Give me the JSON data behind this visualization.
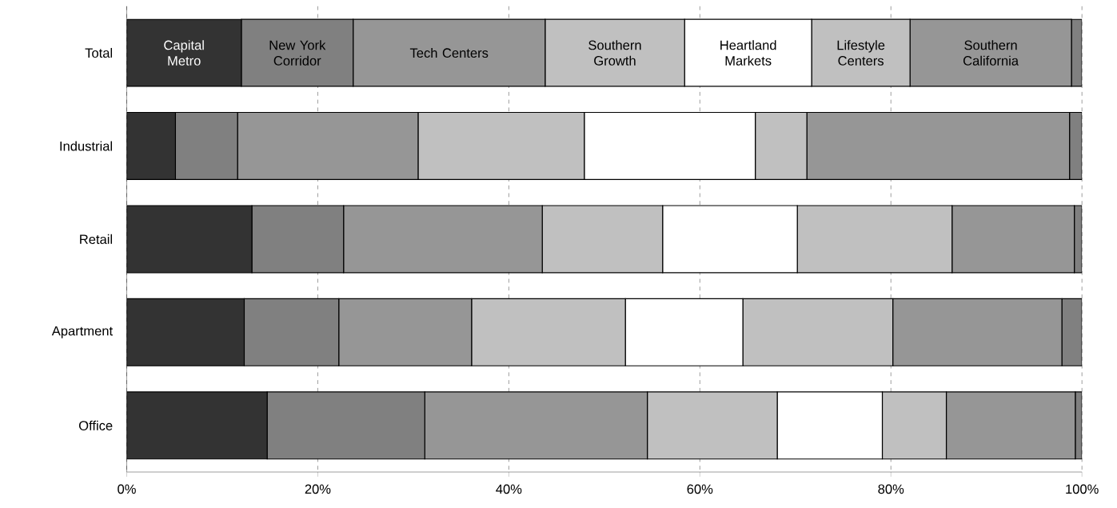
{
  "chart_data": {
    "type": "bar",
    "orientation": "horizontal",
    "stacked": true,
    "grid": "x",
    "categories": [
      "Total",
      "Industrial",
      "Retail",
      "Apartment",
      "Office"
    ],
    "xlim": [
      0,
      100
    ],
    "xticks": [
      {
        "value": 0,
        "label": "0%"
      },
      {
        "value": 20,
        "label": "20%"
      },
      {
        "value": 40,
        "label": "40%"
      },
      {
        "value": 60,
        "label": "60%"
      },
      {
        "value": 80,
        "label": "80%"
      },
      {
        "value": 100,
        "label": "100%"
      }
    ],
    "series": [
      {
        "name": "Capital Metro",
        "color": "#333333",
        "values": [
          12.0,
          5.1,
          13.1,
          12.3,
          14.7
        ]
      },
      {
        "name": "New York Corridor",
        "color": "#808080",
        "values": [
          11.7,
          6.5,
          9.6,
          9.9,
          16.5
        ]
      },
      {
        "name": "Tech Centers",
        "color": "#969696",
        "values": [
          20.1,
          18.9,
          20.8,
          13.9,
          23.3
        ]
      },
      {
        "name": "Southern Growth",
        "color": "#c0c0c0",
        "values": [
          14.6,
          17.4,
          12.6,
          16.1,
          13.6
        ]
      },
      {
        "name": "Heartland Markets",
        "color": "#ffffff",
        "values": [
          13.3,
          17.9,
          14.1,
          12.3,
          11.0
        ]
      },
      {
        "name": "Lifestyle Centers",
        "color": "#c0c0c0",
        "values": [
          10.3,
          5.4,
          16.2,
          15.7,
          6.7
        ]
      },
      {
        "name": "Southern California",
        "color": "#969696",
        "values": [
          16.9,
          27.5,
          12.8,
          17.7,
          13.5
        ]
      },
      {
        "color": "#808080",
        "values": [
          1.1,
          1.3,
          0.8,
          2.1,
          0.7
        ]
      }
    ]
  }
}
